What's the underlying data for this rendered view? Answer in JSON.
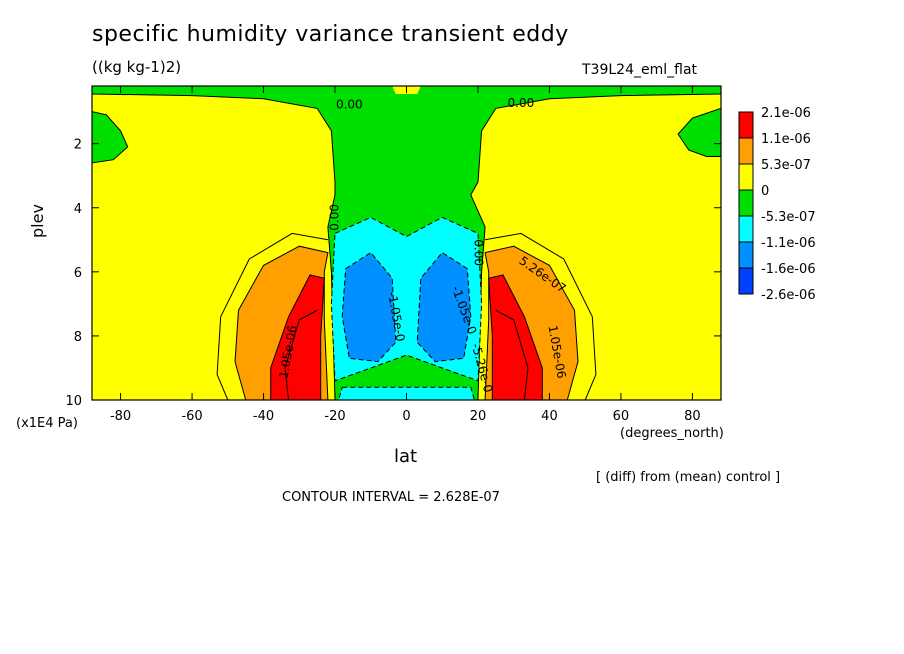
{
  "chart_data": {
    "type": "heatmap",
    "title": "specific humidity variance transient eddy",
    "units": "((kg kg-1)2)",
    "run_label": "T39L24_eml_flat",
    "xlabel": "lat",
    "x_units": "(degrees_north)",
    "ylabel": "plev",
    "y_units": "(x1E4 Pa)",
    "x_ticks": [
      -80,
      -60,
      -40,
      -20,
      0,
      20,
      40,
      60,
      80
    ],
    "y_ticks": [
      2,
      4,
      6,
      8,
      10
    ],
    "xlim": [
      -88,
      88
    ],
    "ylim": [
      10,
      0.2
    ],
    "legend": {
      "position": "right",
      "colors": [
        "#ff0000",
        "#ffa000",
        "#ffff00",
        "#00e000",
        "#00ffff",
        "#0090ff",
        "#0040ff"
      ],
      "labels": [
        "2.1e-06",
        "1.1e-06",
        "5.3e-07",
        "0",
        "-5.3e-07",
        "-1.1e-06",
        "-1.6e-06",
        "-2.6e-06"
      ]
    },
    "contour_labels": [
      {
        "text": "0.00",
        "lat": -16,
        "plev": 0.8,
        "rot": 0
      },
      {
        "text": "0.00",
        "lat": 32,
        "plev": 0.75,
        "rot": 0
      },
      {
        "text": "0.00",
        "lat": -20,
        "plev": 4.3,
        "rot": -90
      },
      {
        "text": "0.00",
        "lat": 20,
        "plev": 5.4,
        "rot": 90
      },
      {
        "text": "5.26e-07",
        "lat": 38,
        "plev": 6.1,
        "rot": 35
      },
      {
        "text": "1.05e-06",
        "lat": -33,
        "plev": 8.5,
        "rot": -80
      },
      {
        "text": "1.05e-06",
        "lat": 42,
        "plev": 8.5,
        "rot": 80
      },
      {
        "text": "-1.05e-0",
        "lat": -3,
        "plev": 7.4,
        "rot": 80
      },
      {
        "text": "-1.05e-0",
        "lat": 16,
        "plev": 7.2,
        "rot": 70
      },
      {
        "text": "-5.26e-0",
        "lat": 21,
        "plev": 9.0,
        "rot": 75
      }
    ],
    "fields": {
      "green_regions": [
        {
          "name": "upper-tongue",
          "lat": [
            -20,
            20
          ],
          "plev": [
            0.2,
            4.5
          ]
        },
        {
          "name": "upper-left-edge",
          "lat": [
            -88,
            -80
          ],
          "plev": [
            1,
            2.6
          ]
        },
        {
          "name": "upper-right-edge",
          "lat": [
            80,
            88
          ],
          "plev": [
            1,
            2.4
          ]
        }
      ],
      "positive_maxima": [
        {
          "lat": -28,
          "plev": 8.6,
          "value": 2.1e-06
        },
        {
          "lat": 28,
          "plev": 8.6,
          "value": 2.1e-06
        }
      ],
      "negative_minima": [
        {
          "lat": -12,
          "plev": 7.5,
          "value": -1.6e-06
        },
        {
          "lat": 12,
          "plev": 7.5,
          "value": -1.6e-06
        }
      ]
    },
    "grid": false
  },
  "footnotes": {
    "diff": "[ (diff) from (mean) control ]",
    "interval": "CONTOUR INTERVAL = 2.628E-07"
  }
}
